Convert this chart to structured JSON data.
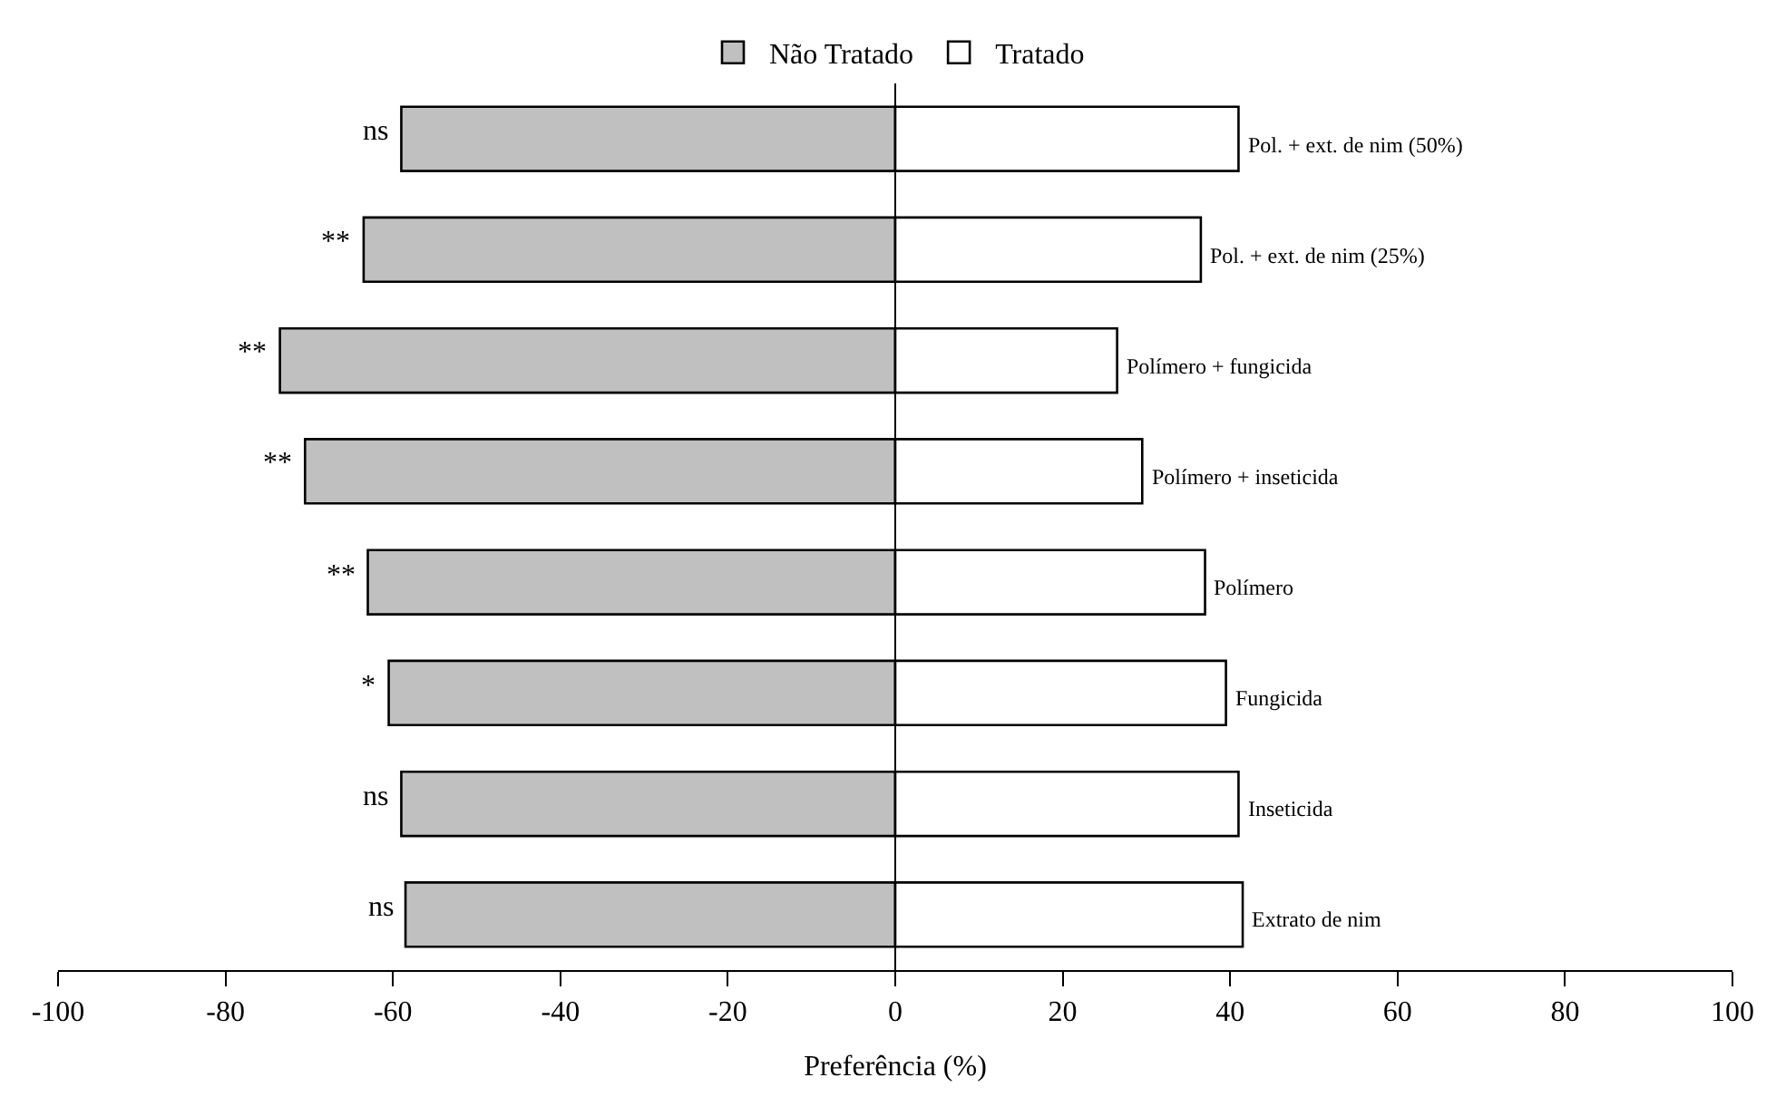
{
  "chart_data": {
    "type": "bar",
    "orientation": "horizontal",
    "stacked": true,
    "xlabel": "Preferência (%)",
    "categories": [
      "Pol. + ext. de nim (50%)",
      "Pol. + ext. de nim (25%)",
      "Polímero + fungicida",
      "Polímero + inseticida",
      "Polímero",
      "Fungicida",
      "Inseticida",
      "Extrato de nim"
    ],
    "series": [
      {
        "name": "Não Tratado",
        "color": "#c0c0c0",
        "values": [
          -59,
          -63.5,
          -73.5,
          -70.5,
          -63,
          -60.5,
          -59,
          -58.5
        ]
      },
      {
        "name": "Tratado",
        "color": "#ffffff",
        "values": [
          41,
          36.5,
          26.5,
          29.5,
          37,
          39.5,
          41,
          41.5
        ]
      }
    ],
    "xlim": [
      -100,
      100
    ],
    "xticks": [
      -100,
      -80,
      -60,
      -40,
      -20,
      0,
      20,
      40,
      60,
      80,
      100
    ],
    "annotations": [
      {
        "text": "ns",
        "x": -59,
        "y": "Pol. + ext. de nim (50%)"
      },
      {
        "text": "**",
        "x": -63.5,
        "y": "Pol. + ext. de nim (25%)"
      },
      {
        "text": "**",
        "x": -73.5,
        "y": "Polímero + fungicida"
      },
      {
        "text": "**",
        "x": -70.5,
        "y": "Polímero + inseticida"
      },
      {
        "text": "**",
        "x": -63,
        "y": "Polímero"
      },
      {
        "text": "*",
        "x": -60.5,
        "y": "Fungicida"
      },
      {
        "text": "ns",
        "x": -59,
        "y": "Inseticida"
      },
      {
        "text": "ns",
        "x": -58.5,
        "y": "Extrato de nim"
      }
    ],
    "ref_lines": [
      {
        "axis": "x",
        "value": 0,
        "color": "#000000"
      }
    ],
    "legend": "top",
    "grid": false
  }
}
